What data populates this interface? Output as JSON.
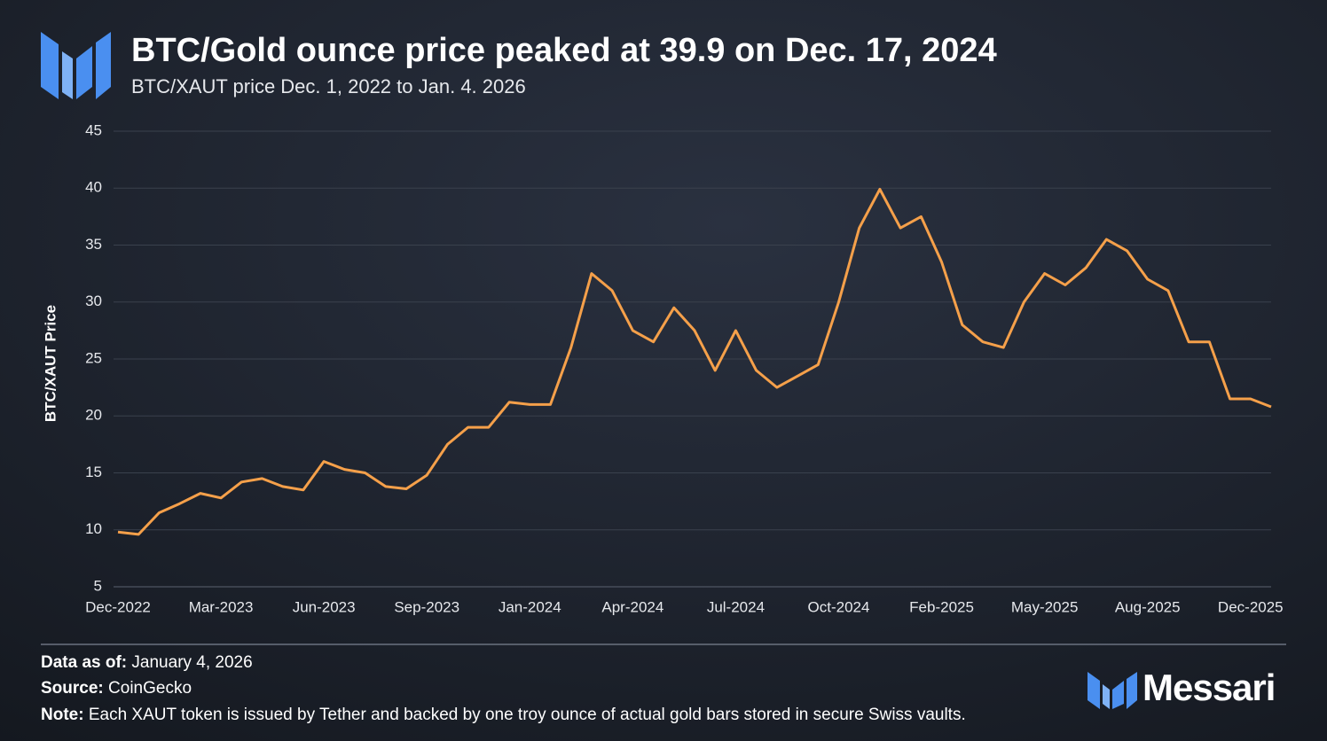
{
  "chart_data": {
    "type": "line",
    "title": "BTC/Gold ounce price peaked at 39.9 on Dec. 17, 2024",
    "subtitle": "BTC/XAUT price Dec. 1, 2022 to Jan. 4. 2026",
    "y_label": "BTC/XAUT Price",
    "categories": [
      "Dec-2022",
      null,
      null,
      null,
      null,
      "Mar-2023",
      null,
      null,
      null,
      null,
      "Jun-2023",
      null,
      null,
      null,
      null,
      "Sep-2023",
      null,
      null,
      null,
      null,
      "Jan-2024",
      null,
      null,
      null,
      null,
      "Apr-2024",
      null,
      null,
      null,
      null,
      "Jul-2024",
      null,
      null,
      null,
      null,
      "Oct-2024",
      null,
      null,
      null,
      null,
      "Feb-2025",
      null,
      null,
      null,
      null,
      "May-2025",
      null,
      null,
      null,
      null,
      "Aug-2025",
      null,
      null,
      null,
      null,
      "Dec-2025",
      null
    ],
    "values": [
      9.8,
      9.6,
      11.5,
      12.3,
      13.2,
      12.8,
      14.2,
      14.5,
      13.8,
      13.5,
      16.0,
      15.3,
      15.0,
      13.8,
      13.6,
      14.8,
      17.5,
      19.0,
      19.0,
      21.2,
      21.0,
      21.0,
      26.0,
      32.5,
      31.0,
      27.5,
      26.5,
      29.5,
      27.5,
      24.0,
      27.5,
      24.0,
      22.5,
      23.5,
      24.5,
      30.0,
      36.5,
      39.9,
      36.5,
      37.5,
      33.5,
      28.0,
      26.5,
      26.0,
      30.0,
      32.5,
      31.5,
      33.0,
      35.5,
      34.5,
      32.0,
      31.0,
      26.5,
      26.5,
      21.5,
      21.5,
      20.8
    ],
    "color": "#f5a04a",
    "ylim": [
      5,
      45
    ],
    "yticks": [
      5,
      10,
      15,
      20,
      25,
      30,
      35,
      40,
      45
    ],
    "grid": true
  },
  "footer": {
    "data_as_of": {
      "label": "Data as of:",
      "value": "January 4, 2026"
    },
    "source": {
      "label": "Source:",
      "value": "CoinGecko"
    },
    "note": {
      "label": "Note:",
      "value": "Each XAUT token is issued by Tether and backed by one troy ounce of actual gold bars stored in secure Swiss vaults."
    },
    "brand": "Messari"
  }
}
